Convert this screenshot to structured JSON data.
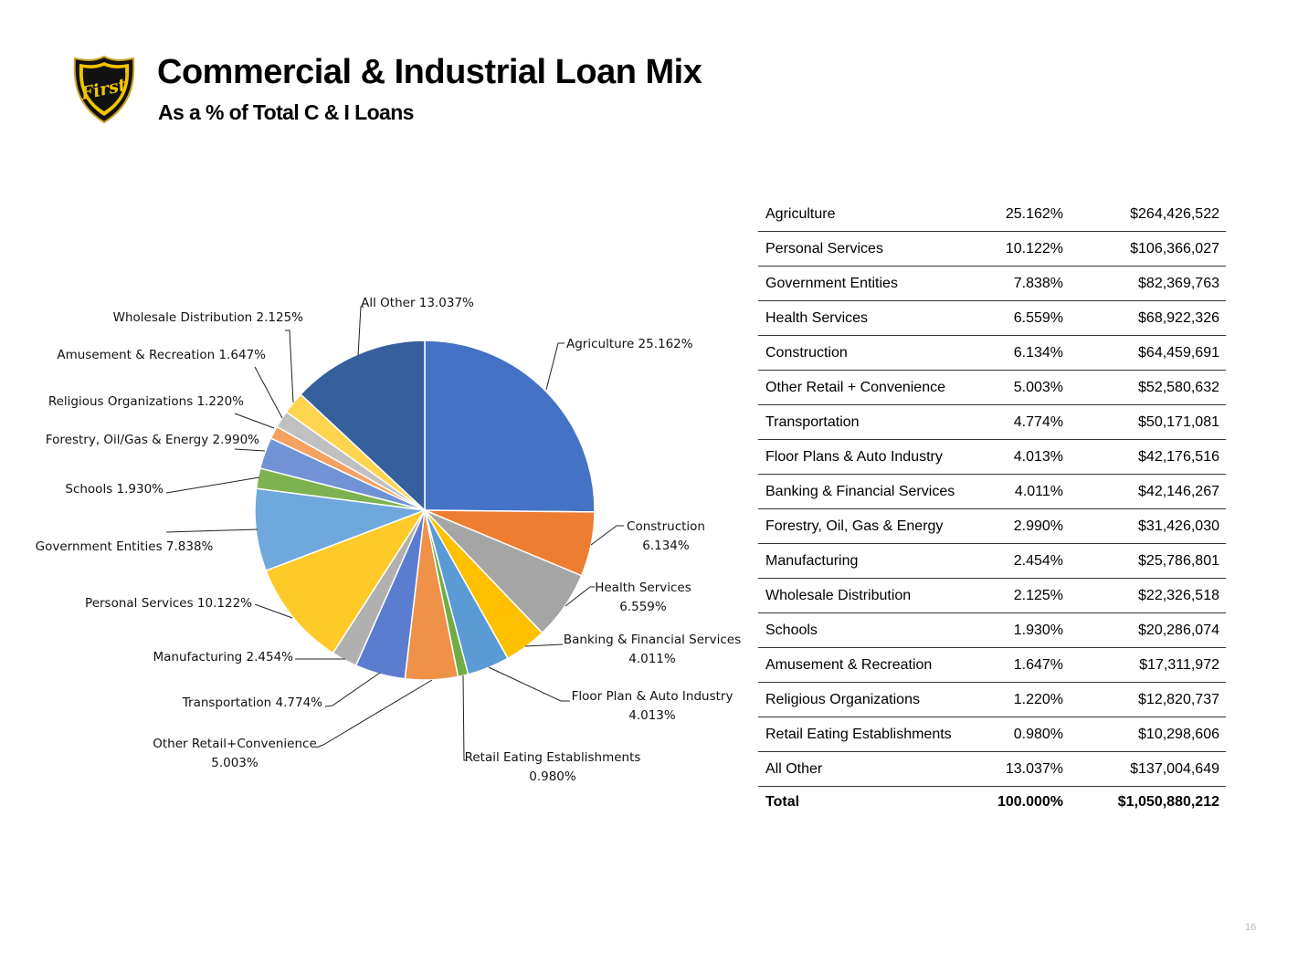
{
  "header": {
    "logo_text": "First",
    "title": "Commercial & Industrial Loan Mix",
    "subtitle": "As a % of Total C & I Loans"
  },
  "chart_data": {
    "type": "pie",
    "categories": [
      "Agriculture",
      "Construction",
      "Health Services",
      "Banking & Financial Services",
      "Floor Plan & Auto Industry",
      "Retail Eating Establishments",
      "Other Retail+Convenience",
      "Transportation",
      "Manufacturing",
      "Personal Services",
      "Government Entities",
      "Schools",
      "Forestry, Oil/Gas & Energy",
      "Religious Organizations",
      "Amusement & Recreation",
      "Wholesale Distribution",
      "All Other"
    ],
    "values": [
      25.162,
      6.134,
      6.559,
      4.011,
      4.013,
      0.98,
      5.003,
      4.774,
      2.454,
      10.122,
      7.838,
      1.93,
      2.99,
      1.22,
      1.647,
      2.125,
      13.037
    ],
    "colors": [
      "#4472C4",
      "#ED7D31",
      "#A5A5A5",
      "#FFC000",
      "#5B9BD5",
      "#70AD47",
      "#F0914A",
      "#5B7DD0",
      "#B0B0B0",
      "#FFCA28",
      "#6FA8DC",
      "#7CB350",
      "#7193D6",
      "#F4A261",
      "#C0C0C0",
      "#FFD54F",
      "#365F9E"
    ],
    "labels": [
      [
        "Agriculture 25.162%"
      ],
      [
        "Construction",
        "6.134%"
      ],
      [
        "Health Services",
        "6.559%"
      ],
      [
        "Banking & Financial Services",
        "4.011%"
      ],
      [
        "Floor Plan & Auto Industry",
        "4.013%"
      ],
      [
        "Retail Eating Establishments",
        "0.980%"
      ],
      [
        "Other Retail+Convenience",
        "5.003%"
      ],
      [
        "Transportation 4.774%"
      ],
      [
        "Manufacturing 2.454%"
      ],
      [
        "Personal Services 10.122%"
      ],
      [
        "Government Entities 7.838%"
      ],
      [
        "Schools 1.930%"
      ],
      [
        "Forestry, Oil/Gas & Energy 2.990%"
      ],
      [
        "Religious Organizations 1.220%"
      ],
      [
        "Amusement & Recreation 1.647%"
      ],
      [
        "Wholesale Distribution 2.125%"
      ],
      [
        "All Other 13.037%"
      ]
    ]
  },
  "table": {
    "rows": [
      {
        "name": "Agriculture",
        "pct": "25.162%",
        "amount": "$264,426,522"
      },
      {
        "name": "Personal Services",
        "pct": "10.122%",
        "amount": "$106,366,027"
      },
      {
        "name": "Government Entities",
        "pct": "7.838%",
        "amount": "$82,369,763"
      },
      {
        "name": "Health Services",
        "pct": "6.559%",
        "amount": "$68,922,326"
      },
      {
        "name": "Construction",
        "pct": "6.134%",
        "amount": "$64,459,691"
      },
      {
        "name": "Other Retail + Convenience",
        "pct": "5.003%",
        "amount": "$52,580,632"
      },
      {
        "name": "Transportation",
        "pct": "4.774%",
        "amount": "$50,171,081"
      },
      {
        "name": "Floor Plans & Auto Industry",
        "pct": "4.013%",
        "amount": "$42,176,516"
      },
      {
        "name": "Banking & Financial Services",
        "pct": "4.011%",
        "amount": "$42,146,267"
      },
      {
        "name": "Forestry, Oil, Gas & Energy",
        "pct": "2.990%",
        "amount": "$31,426,030"
      },
      {
        "name": "Manufacturing",
        "pct": "2.454%",
        "amount": "$25,786,801"
      },
      {
        "name": "Wholesale Distribution",
        "pct": "2.125%",
        "amount": "$22,326,518"
      },
      {
        "name": "Schools",
        "pct": "1.930%",
        "amount": "$20,286,074"
      },
      {
        "name": "Amusement & Recreation",
        "pct": "1.647%",
        "amount": "$17,311,972"
      },
      {
        "name": "Religious Organizations",
        "pct": "1.220%",
        "amount": "$12,820,737"
      },
      {
        "name": "Retail Eating Establishments",
        "pct": "0.980%",
        "amount": "$10,298,606"
      },
      {
        "name": "All Other",
        "pct": "13.037%",
        "amount": "$137,004,649"
      }
    ],
    "total": {
      "name": "Total",
      "pct": "100.000%",
      "amount": "$1,050,880,212"
    }
  },
  "page_number": "16"
}
